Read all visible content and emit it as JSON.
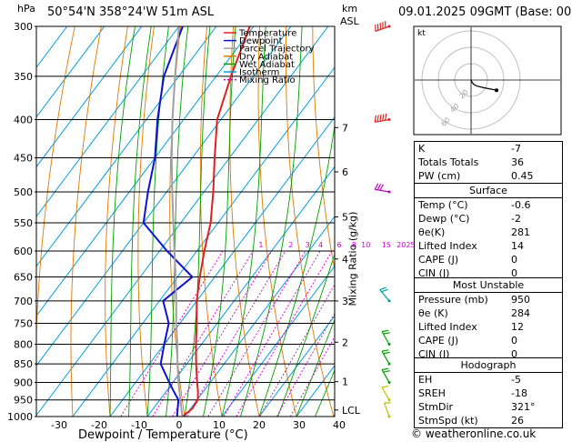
{
  "header": {
    "hpa_label": "hPa",
    "location": "50°54'N  358°24'W  51m  ASL",
    "km_label": "km",
    "asl_label": "ASL",
    "datetime": "09.01.2025  09GMT  (Base: 00)"
  },
  "chart_data": {
    "type": "line",
    "subtype": "skew-T log-P",
    "xlabel": "Dewpoint / Temperature (°C)",
    "ylabel_right": "Mixing Ratio (g/kg)",
    "x_ticks": [
      "-30",
      "-20",
      "-10",
      "0",
      "10",
      "20",
      "30",
      "40"
    ],
    "x_tick_values": [
      -30,
      -20,
      -10,
      0,
      10,
      20,
      30,
      40
    ],
    "pressure_levels": [
      300,
      350,
      400,
      450,
      500,
      550,
      600,
      650,
      700,
      750,
      800,
      850,
      900,
      950,
      1000
    ],
    "km_ticks": [
      {
        "label": "7",
        "p": 410
      },
      {
        "label": "6",
        "p": 470
      },
      {
        "label": "5",
        "p": 540
      },
      {
        "label": "4",
        "p": 615
      },
      {
        "label": "3",
        "p": 700
      },
      {
        "label": "2",
        "p": 795
      },
      {
        "label": "1",
        "p": 898
      },
      {
        "label": "LCL",
        "p": 980
      }
    ],
    "mixing_ratio_labels": [
      {
        "label": "1",
        "t_at_600": -11
      },
      {
        "label": "2",
        "t_at_600": -3
      },
      {
        "label": "3",
        "t_at_600": 1.5
      },
      {
        "label": "4",
        "t_at_600": 5
      },
      {
        "label": "6",
        "t_at_600": 10
      },
      {
        "label": "8",
        "t_at_600": 14
      },
      {
        "label": "10",
        "t_at_600": 16.5
      },
      {
        "label": "15",
        "t_at_600": 22
      },
      {
        "label": "20",
        "t_at_600": 26
      },
      {
        "label": "25",
        "t_at_600": 28.5
      }
    ],
    "legend": [
      "Temperature",
      "Dewpoint",
      "Parcel Trajectory",
      "Dry Adiabat",
      "Wet Adiabat",
      "Isotherm",
      "Mixing Ratio"
    ],
    "series": [
      {
        "name": "Temperature",
        "points": [
          {
            "p": 1000,
            "t": -0.6
          },
          {
            "p": 975,
            "t": 0.5
          },
          {
            "p": 950,
            "t": 0.2
          },
          {
            "p": 925,
            "t": -1.5
          },
          {
            "p": 900,
            "t": -3.5
          },
          {
            "p": 850,
            "t": -7.5
          },
          {
            "p": 800,
            "t": -11.5
          },
          {
            "p": 750,
            "t": -15.5
          },
          {
            "p": 700,
            "t": -20
          },
          {
            "p": 650,
            "t": -24
          },
          {
            "p": 600,
            "t": -28
          },
          {
            "p": 550,
            "t": -32
          },
          {
            "p": 500,
            "t": -37.5
          },
          {
            "p": 450,
            "t": -44
          },
          {
            "p": 400,
            "t": -51
          },
          {
            "p": 350,
            "t": -56
          },
          {
            "p": 300,
            "t": -61
          }
        ]
      },
      {
        "name": "Dewpoint",
        "points": [
          {
            "p": 1000,
            "t": -2
          },
          {
            "p": 975,
            "t": -3.5
          },
          {
            "p": 950,
            "t": -5
          },
          {
            "p": 925,
            "t": -8
          },
          {
            "p": 900,
            "t": -11
          },
          {
            "p": 850,
            "t": -17
          },
          {
            "p": 800,
            "t": -20
          },
          {
            "p": 750,
            "t": -23
          },
          {
            "p": 700,
            "t": -29
          },
          {
            "p": 650,
            "t": -26
          },
          {
            "p": 600,
            "t": -38
          },
          {
            "p": 550,
            "t": -50
          },
          {
            "p": 500,
            "t": -55
          },
          {
            "p": 450,
            "t": -60
          },
          {
            "p": 400,
            "t": -67
          },
          {
            "p": 350,
            "t": -74
          },
          {
            "p": 300,
            "t": -79
          }
        ]
      },
      {
        "name": "Parcel Trajectory",
        "points": [
          {
            "p": 1000,
            "t": -0.6
          },
          {
            "p": 950,
            "t": -4.5
          },
          {
            "p": 900,
            "t": -8.5
          },
          {
            "p": 850,
            "t": -12.5
          },
          {
            "p": 800,
            "t": -16.5
          },
          {
            "p": 750,
            "t": -21
          },
          {
            "p": 700,
            "t": -25.5
          },
          {
            "p": 650,
            "t": -30.5
          },
          {
            "p": 600,
            "t": -36
          },
          {
            "p": 550,
            "t": -42
          },
          {
            "p": 500,
            "t": -48.5
          },
          {
            "p": 450,
            "t": -55.5
          },
          {
            "p": 400,
            "t": -63
          },
          {
            "p": 350,
            "t": -71
          },
          {
            "p": 300,
            "t": -80
          }
        ]
      }
    ],
    "colors": {
      "temperature": "#e02020",
      "dewpoint": "#1010d0",
      "parcel": "#a0a0a0",
      "dry_adiabat": "#e07800",
      "wet_adiabat": "#00a000",
      "isotherm": "#00a0e0",
      "mixing_ratio": "#d000d0"
    },
    "wind_barbs": [
      {
        "p": 300,
        "dir": 250,
        "speed": 70,
        "color": "#e02020"
      },
      {
        "p": 400,
        "dir": 260,
        "speed": 55,
        "color": "#e02020"
      },
      {
        "p": 500,
        "dir": 280,
        "speed": 35,
        "color": "#c000c0"
      },
      {
        "p": 700,
        "dir": 320,
        "speed": 20,
        "color": "#00a0a0"
      },
      {
        "p": 800,
        "dir": 330,
        "speed": 20,
        "color": "#00a000"
      },
      {
        "p": 850,
        "dir": 330,
        "speed": 20,
        "color": "#00a000"
      },
      {
        "p": 900,
        "dir": 330,
        "speed": 20,
        "color": "#00a000"
      },
      {
        "p": 950,
        "dir": 330,
        "speed": 15,
        "color": "#c0c000"
      },
      {
        "p": 1000,
        "dir": 340,
        "speed": 10,
        "color": "#c0c000"
      }
    ]
  },
  "hodograph": {
    "unit_label": "kt",
    "ring_labels": [
      "20",
      "40",
      "60"
    ],
    "trace": [
      [
        0,
        0
      ],
      [
        1,
        -3
      ],
      [
        3,
        -6
      ],
      [
        6,
        -8
      ],
      [
        12,
        -10
      ],
      [
        20,
        -12
      ],
      [
        28,
        -14
      ]
    ]
  },
  "indices": {
    "rows": [
      {
        "label": "K",
        "value": "-7"
      },
      {
        "label": "Totals Totals",
        "value": "36"
      },
      {
        "label": "PW (cm)",
        "value": "0.45"
      }
    ]
  },
  "surface": {
    "title": "Surface",
    "rows": [
      {
        "label": "Temp (°C)",
        "value": "-0.6"
      },
      {
        "label": "Dewp (°C)",
        "value": "-2"
      },
      {
        "label": "θe(K)",
        "value": "281"
      },
      {
        "label": "Lifted Index",
        "value": "14"
      },
      {
        "label": "CAPE (J)",
        "value": "0"
      },
      {
        "label": "CIN (J)",
        "value": "0"
      }
    ]
  },
  "most_unstable": {
    "title": "Most Unstable",
    "rows": [
      {
        "label": "Pressure (mb)",
        "value": "950"
      },
      {
        "label": "θe (K)",
        "value": "284"
      },
      {
        "label": "Lifted Index",
        "value": "12"
      },
      {
        "label": "CAPE (J)",
        "value": "0"
      },
      {
        "label": "CIN (J)",
        "value": "0"
      }
    ]
  },
  "hodograph_table": {
    "title": "Hodograph",
    "rows": [
      {
        "label": "EH",
        "value": "-5"
      },
      {
        "label": "SREH",
        "value": "-18"
      },
      {
        "label": "StmDir",
        "value": "321°"
      },
      {
        "label": "StmSpd (kt)",
        "value": "26"
      }
    ]
  },
  "footer": {
    "copyright": "© weatheronline.co.uk"
  }
}
